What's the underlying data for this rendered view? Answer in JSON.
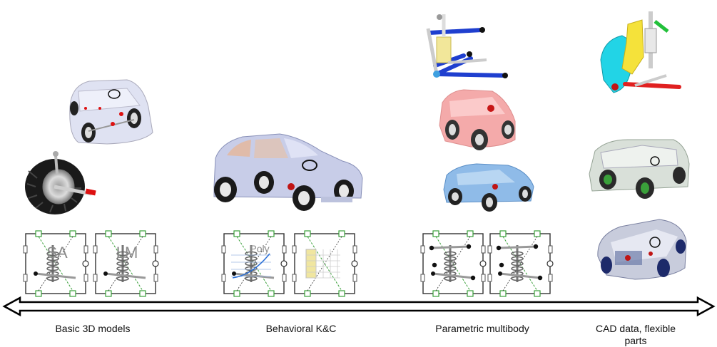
{
  "stages": [
    {
      "label": "Basic 3D models",
      "blocks": [
        {
          "tag": "SA"
        },
        {
          "tag": "LM"
        }
      ]
    },
    {
      "label": "Behavioral K&C",
      "blocks": [
        {
          "tag": "Poly"
        },
        {
          "tag": ""
        }
      ]
    },
    {
      "label": "Parametric multibody",
      "blocks": [
        {
          "tag": ""
        },
        {
          "tag": ""
        }
      ]
    },
    {
      "label": "CAD data, flexible parts",
      "blocks": []
    }
  ],
  "colors": {
    "arrow": "#000000",
    "block_border": "#333333",
    "port_green": "#3aa03a",
    "car_body": "#c9cfe8",
    "car_red": "#f2a0a0",
    "car_blue": "#7aaee0",
    "car_green_glass": "#cfd8cf",
    "susp_blue": "#1f3fcf",
    "susp_cyan": "#22d4e6",
    "susp_yellow": "#f5e23a",
    "susp_red": "#e02020",
    "poly_grid": "#f0e6a0"
  }
}
